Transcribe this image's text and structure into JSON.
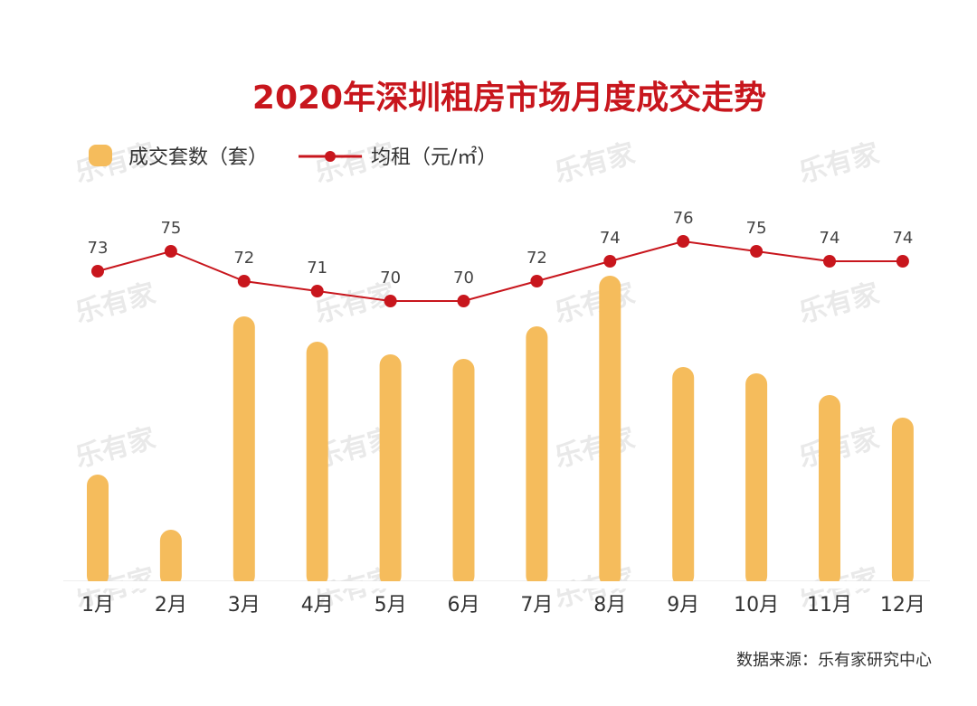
{
  "chart_data": {
    "type": "bar",
    "title": "2020年深圳租房市场月度成交走势",
    "categories": [
      "1月",
      "2月",
      "3月",
      "4月",
      "5月",
      "6月",
      "7月",
      "8月",
      "9月",
      "10月",
      "11月",
      "12月"
    ],
    "series": [
      {
        "name": "成交套数（套）",
        "kind": "bar",
        "values": [
          118,
          57,
          293,
          265,
          251,
          246,
          282,
          338,
          237,
          230,
          206,
          181
        ]
      },
      {
        "name": "均租（元/㎡）",
        "kind": "line",
        "values": [
          73,
          75,
          72,
          71,
          70,
          70,
          72,
          74,
          76,
          75,
          74,
          74
        ]
      }
    ],
    "legend_position": "top-left",
    "grid": false,
    "colors": {
      "bar": "#F5BC5C",
      "line": "#C8161D",
      "title": "#C8161D"
    }
  },
  "source": "数据来源：乐有家研究中心",
  "watermark": "乐有家"
}
